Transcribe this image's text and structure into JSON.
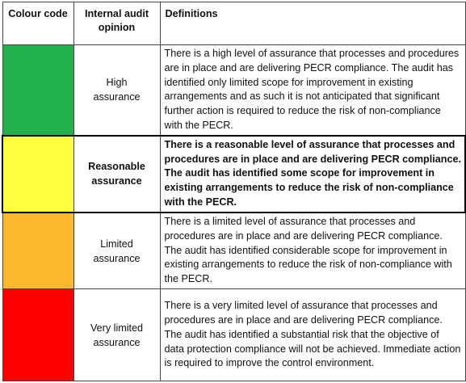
{
  "table": {
    "header": [
      "Colour code",
      "Internal audit opinion",
      "Definitions"
    ],
    "rows": [
      {
        "color": "#22b14c",
        "opinion": "High assurance",
        "bold": false,
        "definition": "There is a high level of assurance that processes and procedures are in place and are delivering PECR compliance. The audit has identified only limited scope for improvement in existing arrangements and as such it is not anticipated that significant further action is required to reduce the risk of non-compliance with the PECR."
      },
      {
        "color": "#ffff40",
        "opinion": "Reasonable assurance",
        "bold": true,
        "definition": "There is a reasonable level of assurance that processes and procedures are in place and are delivering PECR compliance. The audit has identified some scope for improvement in existing arrangements to reduce the risk of non-compliance with the PECR."
      },
      {
        "color": "#fdb92e",
        "opinion": "Limited assurance",
        "bold": false,
        "definition": "There is a limited level of assurance that processes and procedures are in place and are delivering PECR compliance. The audit has identified considerable scope for improvement in existing arrangements to reduce the risk of non-compliance with the PECR."
      },
      {
        "color": "#ff0000",
        "opinion": "Very limited assurance",
        "bold": false,
        "definition": "There is a very limited level of assurance that processes and procedures are in place and are delivering PECR compliance. The audit has identified a substantial risk that the objective of data protection compliance will not be achieved. Immediate action is required to improve the control environment."
      }
    ]
  }
}
